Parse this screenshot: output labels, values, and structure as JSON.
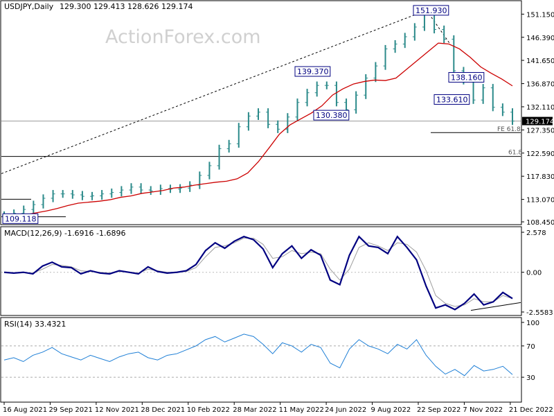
{
  "header": {
    "symbol_timeframe": "USDJPY,Daily",
    "ohlc": "129.300 129.413 128.626 129.174"
  },
  "watermark": "ActionForex.com",
  "colors": {
    "candle": "#2b8a8a",
    "ma_line": "#cc0000",
    "macd_line": "#000080",
    "signal_line": "#9e9e9e",
    "rsi_line": "#1e7fd6",
    "label_box_border": "#000080",
    "price_tag_bg": "#000000",
    "trendline": "#000000"
  },
  "chart_data": [
    {
      "type": "line",
      "panel": "price",
      "title": "USDJPY,Daily",
      "ylim": [
        108.45,
        153.2
      ],
      "y_ticks": [
        "151.150",
        "146.390",
        "141.650",
        "136.870",
        "132.110",
        "127.350",
        "122.590",
        "117.830",
        "113.070",
        "108.450"
      ],
      "x_ticks": [
        "16 Aug 2021",
        "29 Sep 2021",
        "12 Nov 2021",
        "28 Dec 2021",
        "10 Feb 2022",
        "28 Mar 2022",
        "11 May 2022",
        "24 Jun 2022",
        "9 Aug 2022",
        "22 Sep 2022",
        "7 Nov 2022",
        "21 Dec 2022"
      ],
      "series": [
        {
          "values": [
            109.5,
            109.8,
            109.9,
            110.3,
            110.7,
            111.2,
            111.8,
            112.3,
            112.5,
            112.7,
            113.0,
            113.5,
            113.8,
            114.3,
            114.6,
            114.9,
            115.4,
            115.6,
            116.0,
            116.3,
            116.6,
            116.8,
            117.3,
            118.5,
            120.8,
            123.6,
            126.5,
            128.4,
            129.6,
            130.8,
            132.3,
            134.5,
            135.8,
            136.8,
            137.3,
            137.6,
            137.5,
            138.0,
            139.8,
            141.6,
            143.4,
            145.2,
            145.0,
            144.0,
            142.3,
            140.3,
            139.0,
            137.8,
            136.4
          ]
        },
        {
          "values": [
            109.8,
            110.2,
            111.0,
            112.0,
            113.3,
            114.2,
            114.2,
            114.0,
            113.7,
            113.8,
            114.2,
            114.5,
            115.0,
            115.6,
            115.0,
            114.8,
            115.3,
            115.2,
            115.4,
            116.0,
            118.0,
            120.0,
            123.5,
            124.5,
            128.0,
            130.2,
            131.0,
            128.5,
            127.5,
            130.0,
            133.0,
            135.0,
            136.5,
            136.5,
            133.0,
            131.5,
            134.5,
            138.0,
            140.5,
            144.0,
            145.0,
            146.5,
            148.5,
            151.9,
            148.0,
            146.0,
            139.5,
            137.5,
            133.5,
            136.0,
            132.0,
            131.0,
            129.17
          ]
        }
      ],
      "price_labels": [
        "151.930",
        "139.370",
        "130.380",
        "138.160",
        "133.610",
        "109.118"
      ],
      "annotations": [
        "FE 61.8",
        "61.8"
      ],
      "last_price": "129.174",
      "trendline_endpoints": [
        [
          109.1,
          151.93
        ]
      ],
      "horizontal_levels": [
        129.174,
        126.8,
        121.9
      ]
    },
    {
      "type": "line",
      "panel": "macd",
      "title": "MACD(12,26,9) -1.6916 -1.6896",
      "ylim": [
        -2.5583,
        2.578
      ],
      "y_ticks": [
        "2.578",
        "0.00",
        "-2.5583"
      ],
      "series": [
        {
          "values": [
            0.0,
            -0.05,
            0.0,
            -0.1,
            0.4,
            0.65,
            0.35,
            0.3,
            -0.1,
            0.1,
            -0.05,
            -0.1,
            0.1,
            0.0,
            -0.1,
            0.35,
            0.05,
            -0.05,
            0.0,
            0.1,
            0.5,
            1.4,
            1.9,
            1.55,
            2.0,
            2.3,
            2.1,
            1.5,
            0.3,
            1.2,
            1.7,
            0.9,
            1.45,
            1.1,
            -0.5,
            -0.8,
            1.1,
            2.3,
            1.7,
            1.6,
            1.2,
            2.3,
            1.6,
            0.8,
            -0.9,
            -2.3,
            -2.1,
            -2.4,
            -2.0,
            -1.4,
            -2.1,
            -1.9,
            -1.3,
            -1.69
          ]
        },
        {
          "values": [
            0.0,
            -0.05,
            -0.03,
            -0.05,
            0.2,
            0.5,
            0.45,
            0.35,
            0.1,
            0.05,
            0.0,
            -0.05,
            0.05,
            0.02,
            -0.05,
            0.2,
            0.1,
            0.0,
            0.0,
            0.05,
            0.3,
            1.0,
            1.6,
            1.7,
            1.9,
            2.2,
            2.2,
            1.8,
            0.9,
            1.0,
            1.4,
            1.2,
            1.3,
            1.2,
            0.2,
            -0.5,
            0.2,
            1.6,
            1.9,
            1.7,
            1.4,
            1.9,
            1.8,
            1.3,
            0.1,
            -1.5,
            -2.0,
            -2.2,
            -2.1,
            -1.7,
            -1.9,
            -1.9,
            -1.5,
            -1.69
          ]
        }
      ],
      "trendline_endpoints": [
        [
          -2.45,
          -1.95
        ]
      ]
    },
    {
      "type": "line",
      "panel": "rsi",
      "title": "RSI(14) 33.4321",
      "ylim": [
        0,
        100
      ],
      "y_ticks": [
        "100",
        "70",
        "30"
      ],
      "levels": [
        70,
        30
      ],
      "series": [
        {
          "values": [
            52,
            55,
            50,
            58,
            62,
            68,
            60,
            56,
            52,
            58,
            54,
            50,
            56,
            60,
            62,
            55,
            52,
            58,
            60,
            65,
            70,
            78,
            82,
            75,
            80,
            85,
            82,
            72,
            60,
            74,
            70,
            62,
            72,
            68,
            48,
            42,
            66,
            78,
            70,
            66,
            60,
            72,
            66,
            78,
            58,
            44,
            34,
            40,
            32,
            45,
            38,
            40,
            44,
            33.4
          ]
        }
      ]
    }
  ]
}
